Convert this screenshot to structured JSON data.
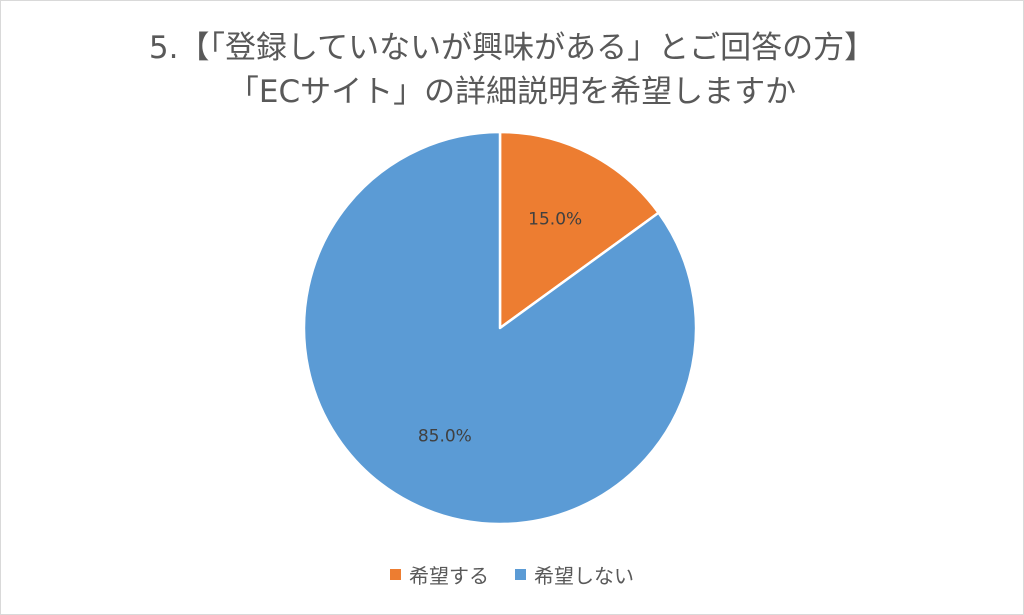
{
  "chart_data": {
    "type": "pie",
    "title_lines": [
      "5.【「登録していないが興味がある」とご回答の方】",
      "「ECサイト」の詳細説明を希望しますか"
    ],
    "categories": [
      "希望する",
      "希望しない"
    ],
    "values": [
      15.0,
      85.0
    ],
    "labels": [
      "15.0%",
      "85.0%"
    ],
    "colors": [
      "#ED7D31",
      "#5B9BD5"
    ],
    "legend_position": "bottom",
    "start_angle": "top",
    "direction": "clockwise"
  }
}
